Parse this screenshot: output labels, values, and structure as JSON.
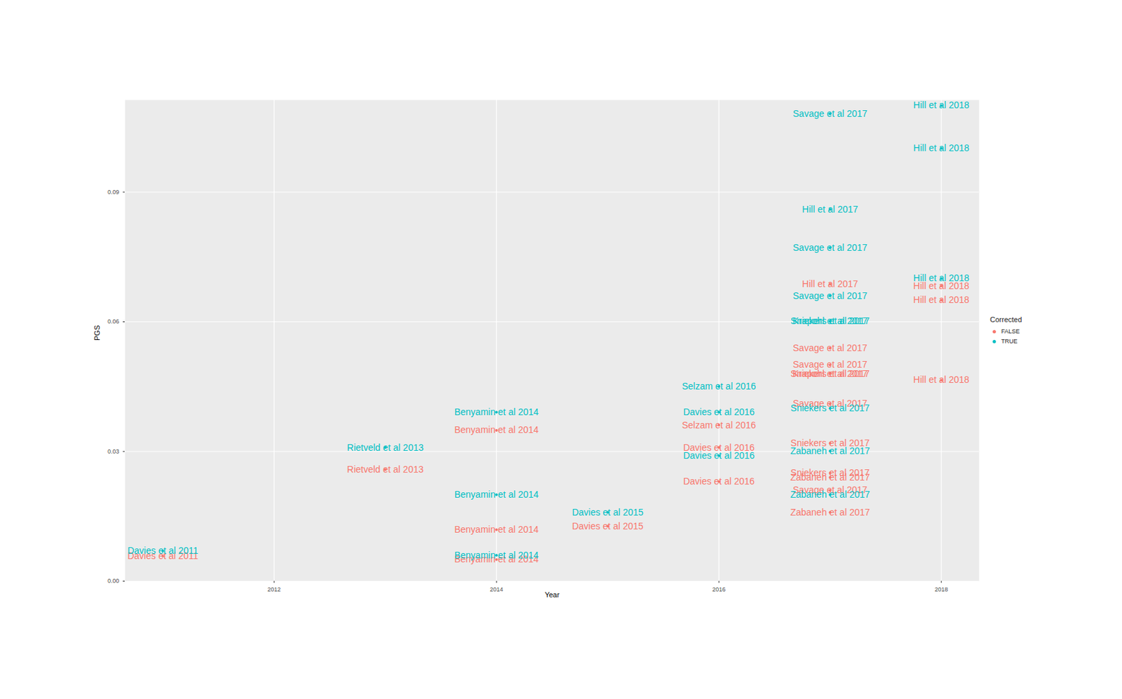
{
  "chart_data": {
    "type": "scatter",
    "x_label": "Year",
    "y_label": "PGS",
    "xlim": [
      2010.66,
      2018.34
    ],
    "ylim": [
      0,
      0.1113
    ],
    "xticks": [
      2012,
      2014,
      2016,
      2018
    ],
    "yticks": [
      {
        "value": 0,
        "label": "0.00"
      },
      0.03,
      0.06,
      0.09
    ],
    "grid": true,
    "legend": "right",
    "legend_title": "Corrected",
    "series": [
      {
        "name": "FALSE",
        "color": "#F8766D",
        "x": [
          2011,
          2013,
          2014,
          2014,
          2014,
          2015,
          2016,
          2016,
          2016,
          2017,
          2017,
          2017,
          2017,
          2017,
          2017,
          2017,
          2017,
          2017,
          2017,
          2017,
          2018,
          2018,
          2018
        ],
        "values": [
          0.0058,
          0.0258,
          0.0349,
          0.0119,
          0.005,
          0.0127,
          0.0361,
          0.0309,
          0.023,
          0.0687,
          0.0539,
          0.05,
          0.048,
          0.048,
          0.041,
          0.0319,
          0.025,
          0.024,
          0.021,
          0.0159,
          0.0683,
          0.065,
          0.0465
        ],
        "labels": [
          "Davies et al 2011",
          "Rietveld et al 2013",
          "Benyamin et al 2014",
          "Benyamin et al 2014",
          "Benyamin et al 2014",
          "Davies et al 2015",
          "Selzam et al 2016",
          "Davies et al 2016",
          "Davies et al 2016",
          "Hill et al 2017",
          "Savage et al 2017",
          "Savage et al 2017",
          "Sniekers et al 2017",
          "Krapohl et al 2017",
          "Savage et al 2017",
          "Sniekers et al 2017",
          "Sniekers et al 2017",
          "Zabaneh et al 2017",
          "Savage et al 2017",
          "Zabaneh et al 2017",
          "Hill et al 2018",
          "Hill et al 2018",
          "Hill et al 2018"
        ]
      },
      {
        "name": "TRUE",
        "color": "#00BFC4",
        "x": [
          2011,
          2013,
          2014,
          2014,
          2014,
          2015,
          2016,
          2016,
          2016,
          2017,
          2017,
          2017,
          2017,
          2017,
          2017,
          2017,
          2017,
          2017,
          2018,
          2018,
          2018
        ],
        "values": [
          0.007,
          0.0309,
          0.0391,
          0.02,
          0.006,
          0.0159,
          0.045,
          0.0391,
          0.029,
          0.1081,
          0.086,
          0.0771,
          0.066,
          0.0601,
          0.0601,
          0.04,
          0.0301,
          0.02,
          0.11,
          0.1001,
          0.07
        ],
        "labels": [
          "Davies et al 2011",
          "Rietveld et al 2013",
          "Benyamin et al 2014",
          "Benyamin et al 2014",
          "Benyamin et al 2014",
          "Davies et al 2015",
          "Selzam et al 2016",
          "Davies et al 2016",
          "Davies et al 2016",
          "Savage et al 2017",
          "Hill et al 2017",
          "Savage et al 2017",
          "Savage et al 2017",
          "Sniekers et al 2017",
          "Krapohl et al 2017",
          "Sniekers et al 2017",
          "Zabaneh et al 2017",
          "Zabaneh et al 2017",
          "Hill et al 2018",
          "Hill et al 2018",
          "Hill et al 2018"
        ]
      }
    ]
  }
}
